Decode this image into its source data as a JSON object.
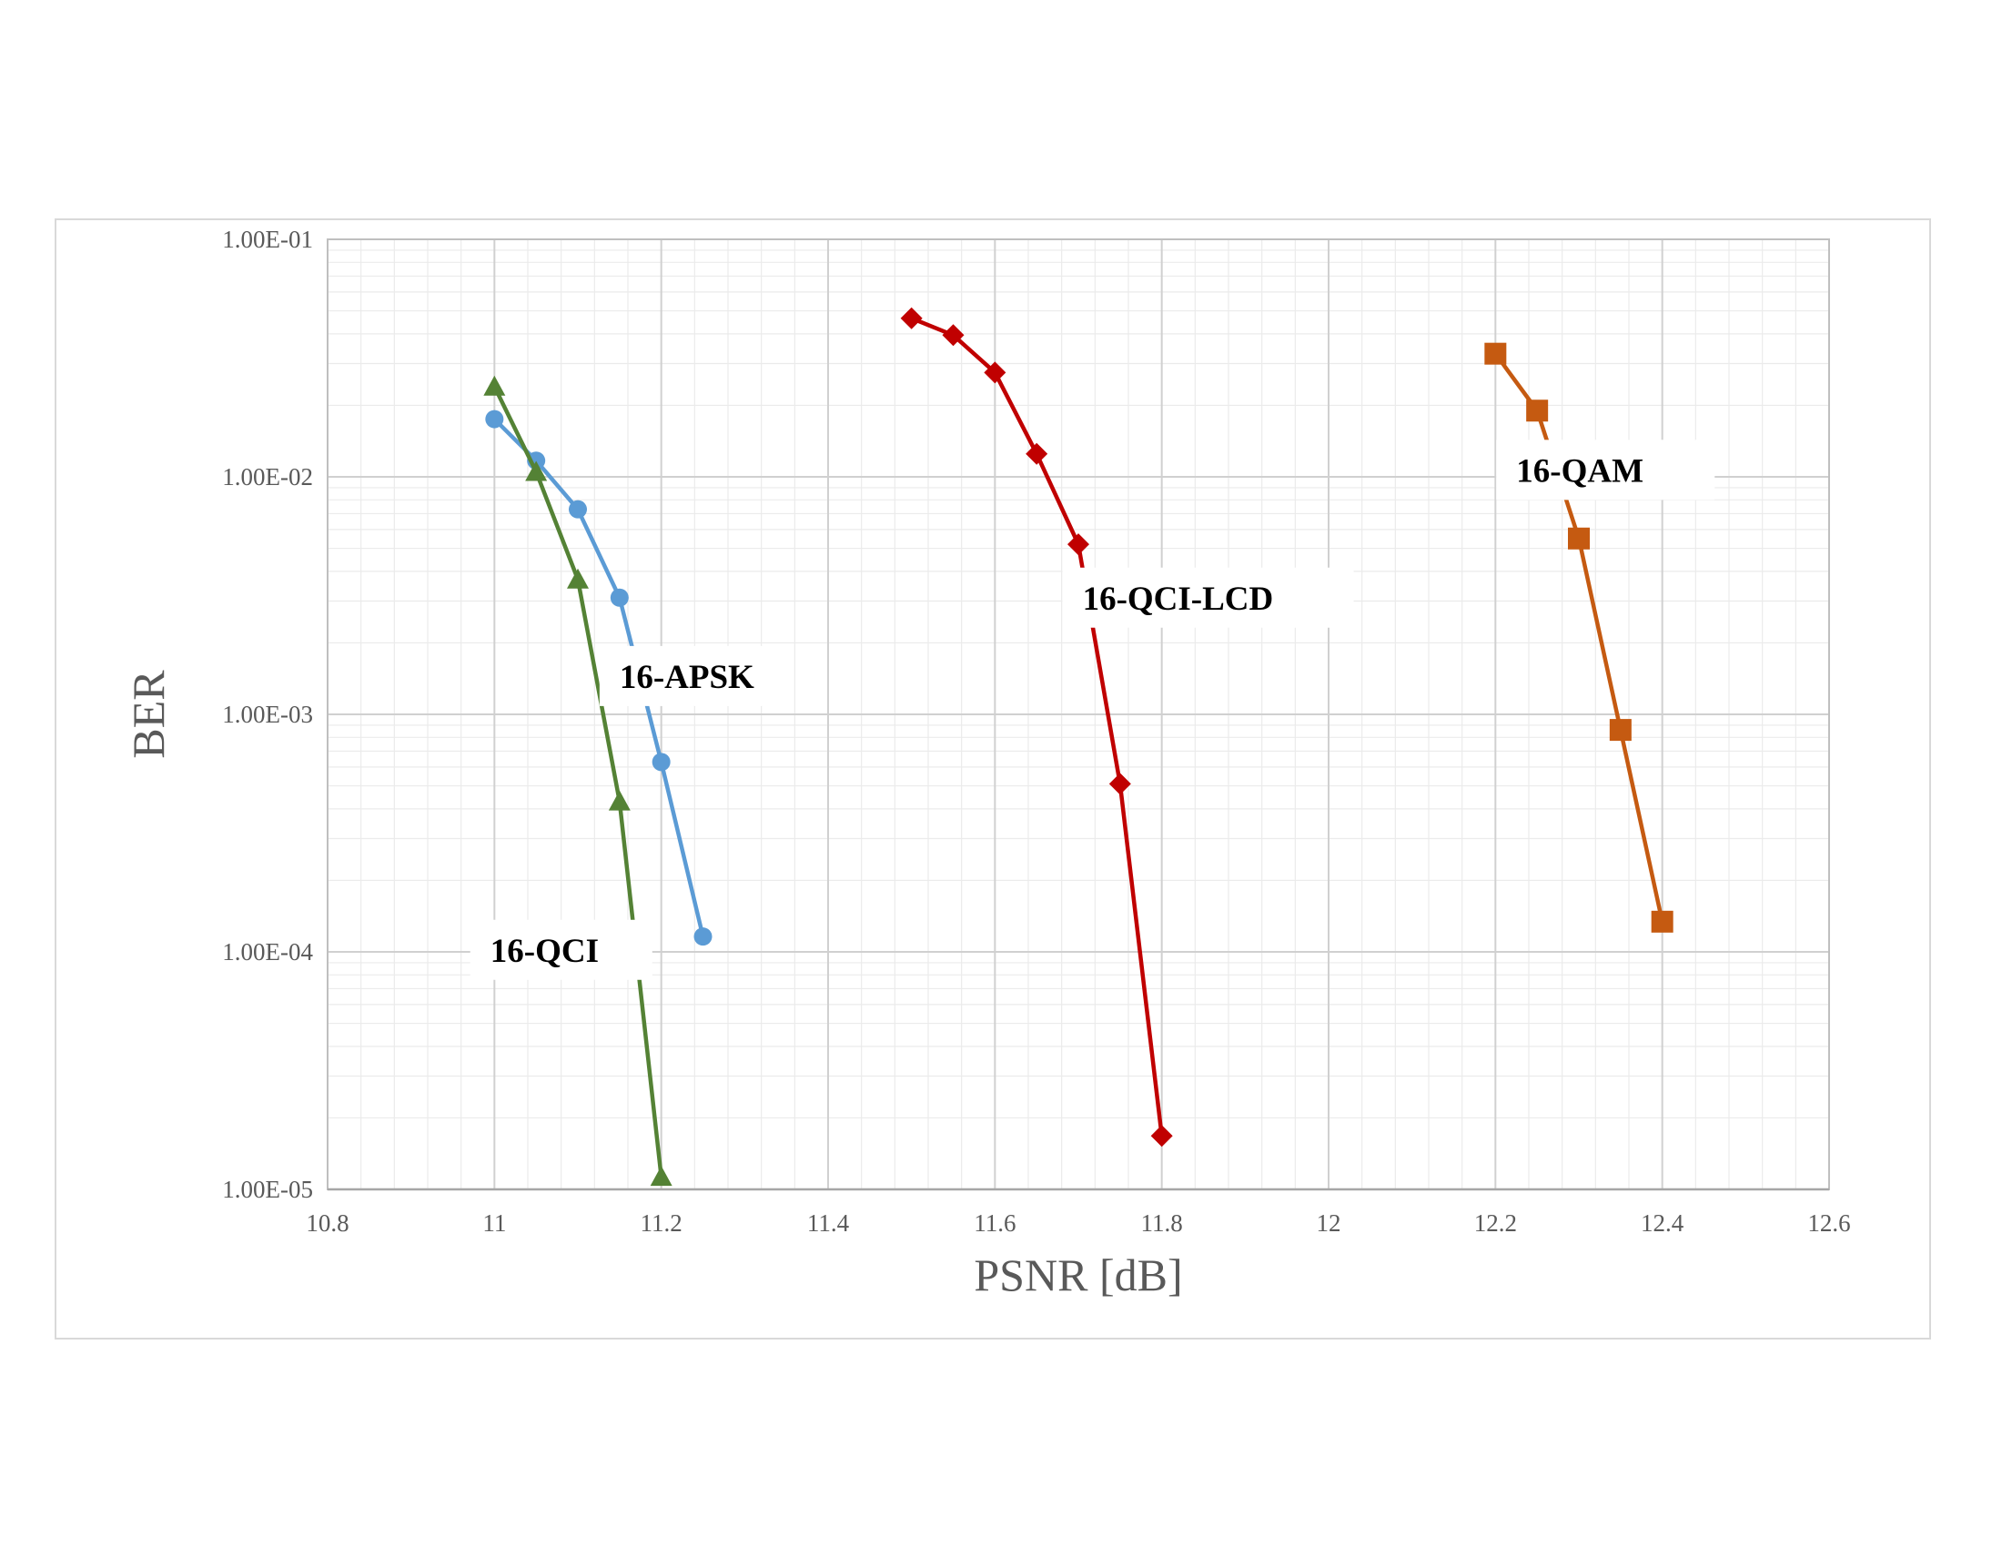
{
  "chart_data": {
    "type": "line",
    "title": "",
    "xlabel": "PSNR [dB]",
    "ylabel": "BER",
    "xlim": [
      10.8,
      12.6
    ],
    "ylim": [
      1e-05,
      0.1
    ],
    "yscale": "log",
    "grid": true,
    "legend": "none (series labelled directly on plot)",
    "x_ticks": [
      "10.8",
      "11",
      "11.2",
      "11.4",
      "11.6",
      "11.8",
      "12",
      "12.2",
      "12.4",
      "12.6"
    ],
    "y_ticks": [
      "1.00E-01",
      "1.00E-02",
      "1.00E-03",
      "1.00E-04",
      "1.00E-05"
    ],
    "series": [
      {
        "name": "16-APSK",
        "color": "#5B9BD5",
        "marker": "circle",
        "x": [
          11.0,
          11.05,
          11.1,
          11.15,
          11.2,
          11.25
        ],
        "y": [
          0.0175,
          0.0117,
          0.0073,
          0.0031,
          0.00063,
          0.000116
        ]
      },
      {
        "name": "16-QCI",
        "color": "#548235",
        "marker": "triangle",
        "x": [
          11.0,
          11.05,
          11.1,
          11.15,
          11.2
        ],
        "y": [
          0.024,
          0.0105,
          0.0037,
          0.00043,
          1.13e-05
        ]
      },
      {
        "name": "16-QCI-LCD",
        "color": "#C00000",
        "marker": "diamond",
        "x": [
          11.5,
          11.55,
          11.6,
          11.65,
          11.7,
          11.75,
          11.8
        ],
        "y": [
          0.0465,
          0.0395,
          0.0275,
          0.0125,
          0.0052,
          0.00051,
          1.68e-05
        ]
      },
      {
        "name": "16-QAM",
        "color": "#C55A11",
        "marker": "square",
        "x": [
          12.2,
          12.25,
          12.3,
          12.35,
          12.4
        ],
        "y": [
          0.033,
          0.019,
          0.0055,
          0.00086,
          0.000134
        ]
      }
    ]
  }
}
